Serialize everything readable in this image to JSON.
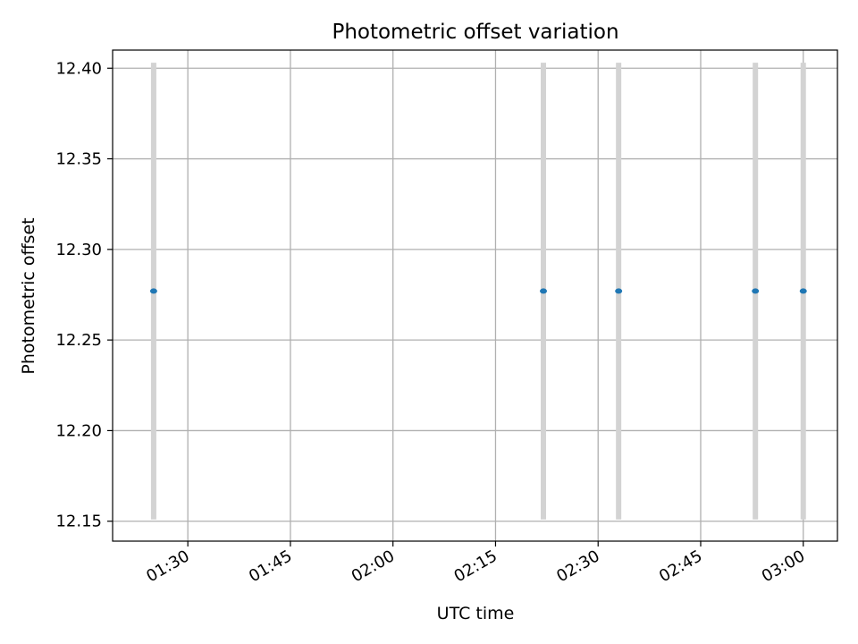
{
  "chart_data": {
    "type": "scatter",
    "title": "Photometric offset variation",
    "xlabel": "UTC time",
    "ylabel": "Photometric offset",
    "x_tick_labels": [
      "01:30",
      "01:45",
      "02:00",
      "02:15",
      "02:30",
      "02:45",
      "03:00"
    ],
    "y_tick_labels": [
      "12.15",
      "12.20",
      "12.25",
      "12.30",
      "12.35",
      "12.40"
    ],
    "x_ticks": [
      "01:30",
      "01:45",
      "02:00",
      "02:15",
      "02:30",
      "02:45",
      "03:00"
    ],
    "y_ticks": [
      12.15,
      12.2,
      12.25,
      12.3,
      12.35,
      12.4
    ],
    "xlim": [
      "01:19",
      "03:05"
    ],
    "ylim": [
      12.139,
      12.41
    ],
    "grid": true,
    "points": [
      {
        "x": "01:25",
        "y": 12.277,
        "yerr_low": 12.151,
        "yerr_high": 12.403
      },
      {
        "x": "02:22",
        "y": 12.277,
        "yerr_low": 12.151,
        "yerr_high": 12.403
      },
      {
        "x": "02:33",
        "y": 12.277,
        "yerr_low": 12.151,
        "yerr_high": 12.403
      },
      {
        "x": "02:53",
        "y": 12.277,
        "yerr_low": 12.151,
        "yerr_high": 12.403
      },
      {
        "x": "03:00",
        "y": 12.277,
        "yerr_low": 12.151,
        "yerr_high": 12.403
      }
    ],
    "colors": {
      "point": "#1f77b4",
      "errorbar": "#d3d3d3",
      "grid": "#b0b0b0",
      "axes": "#000000"
    }
  }
}
